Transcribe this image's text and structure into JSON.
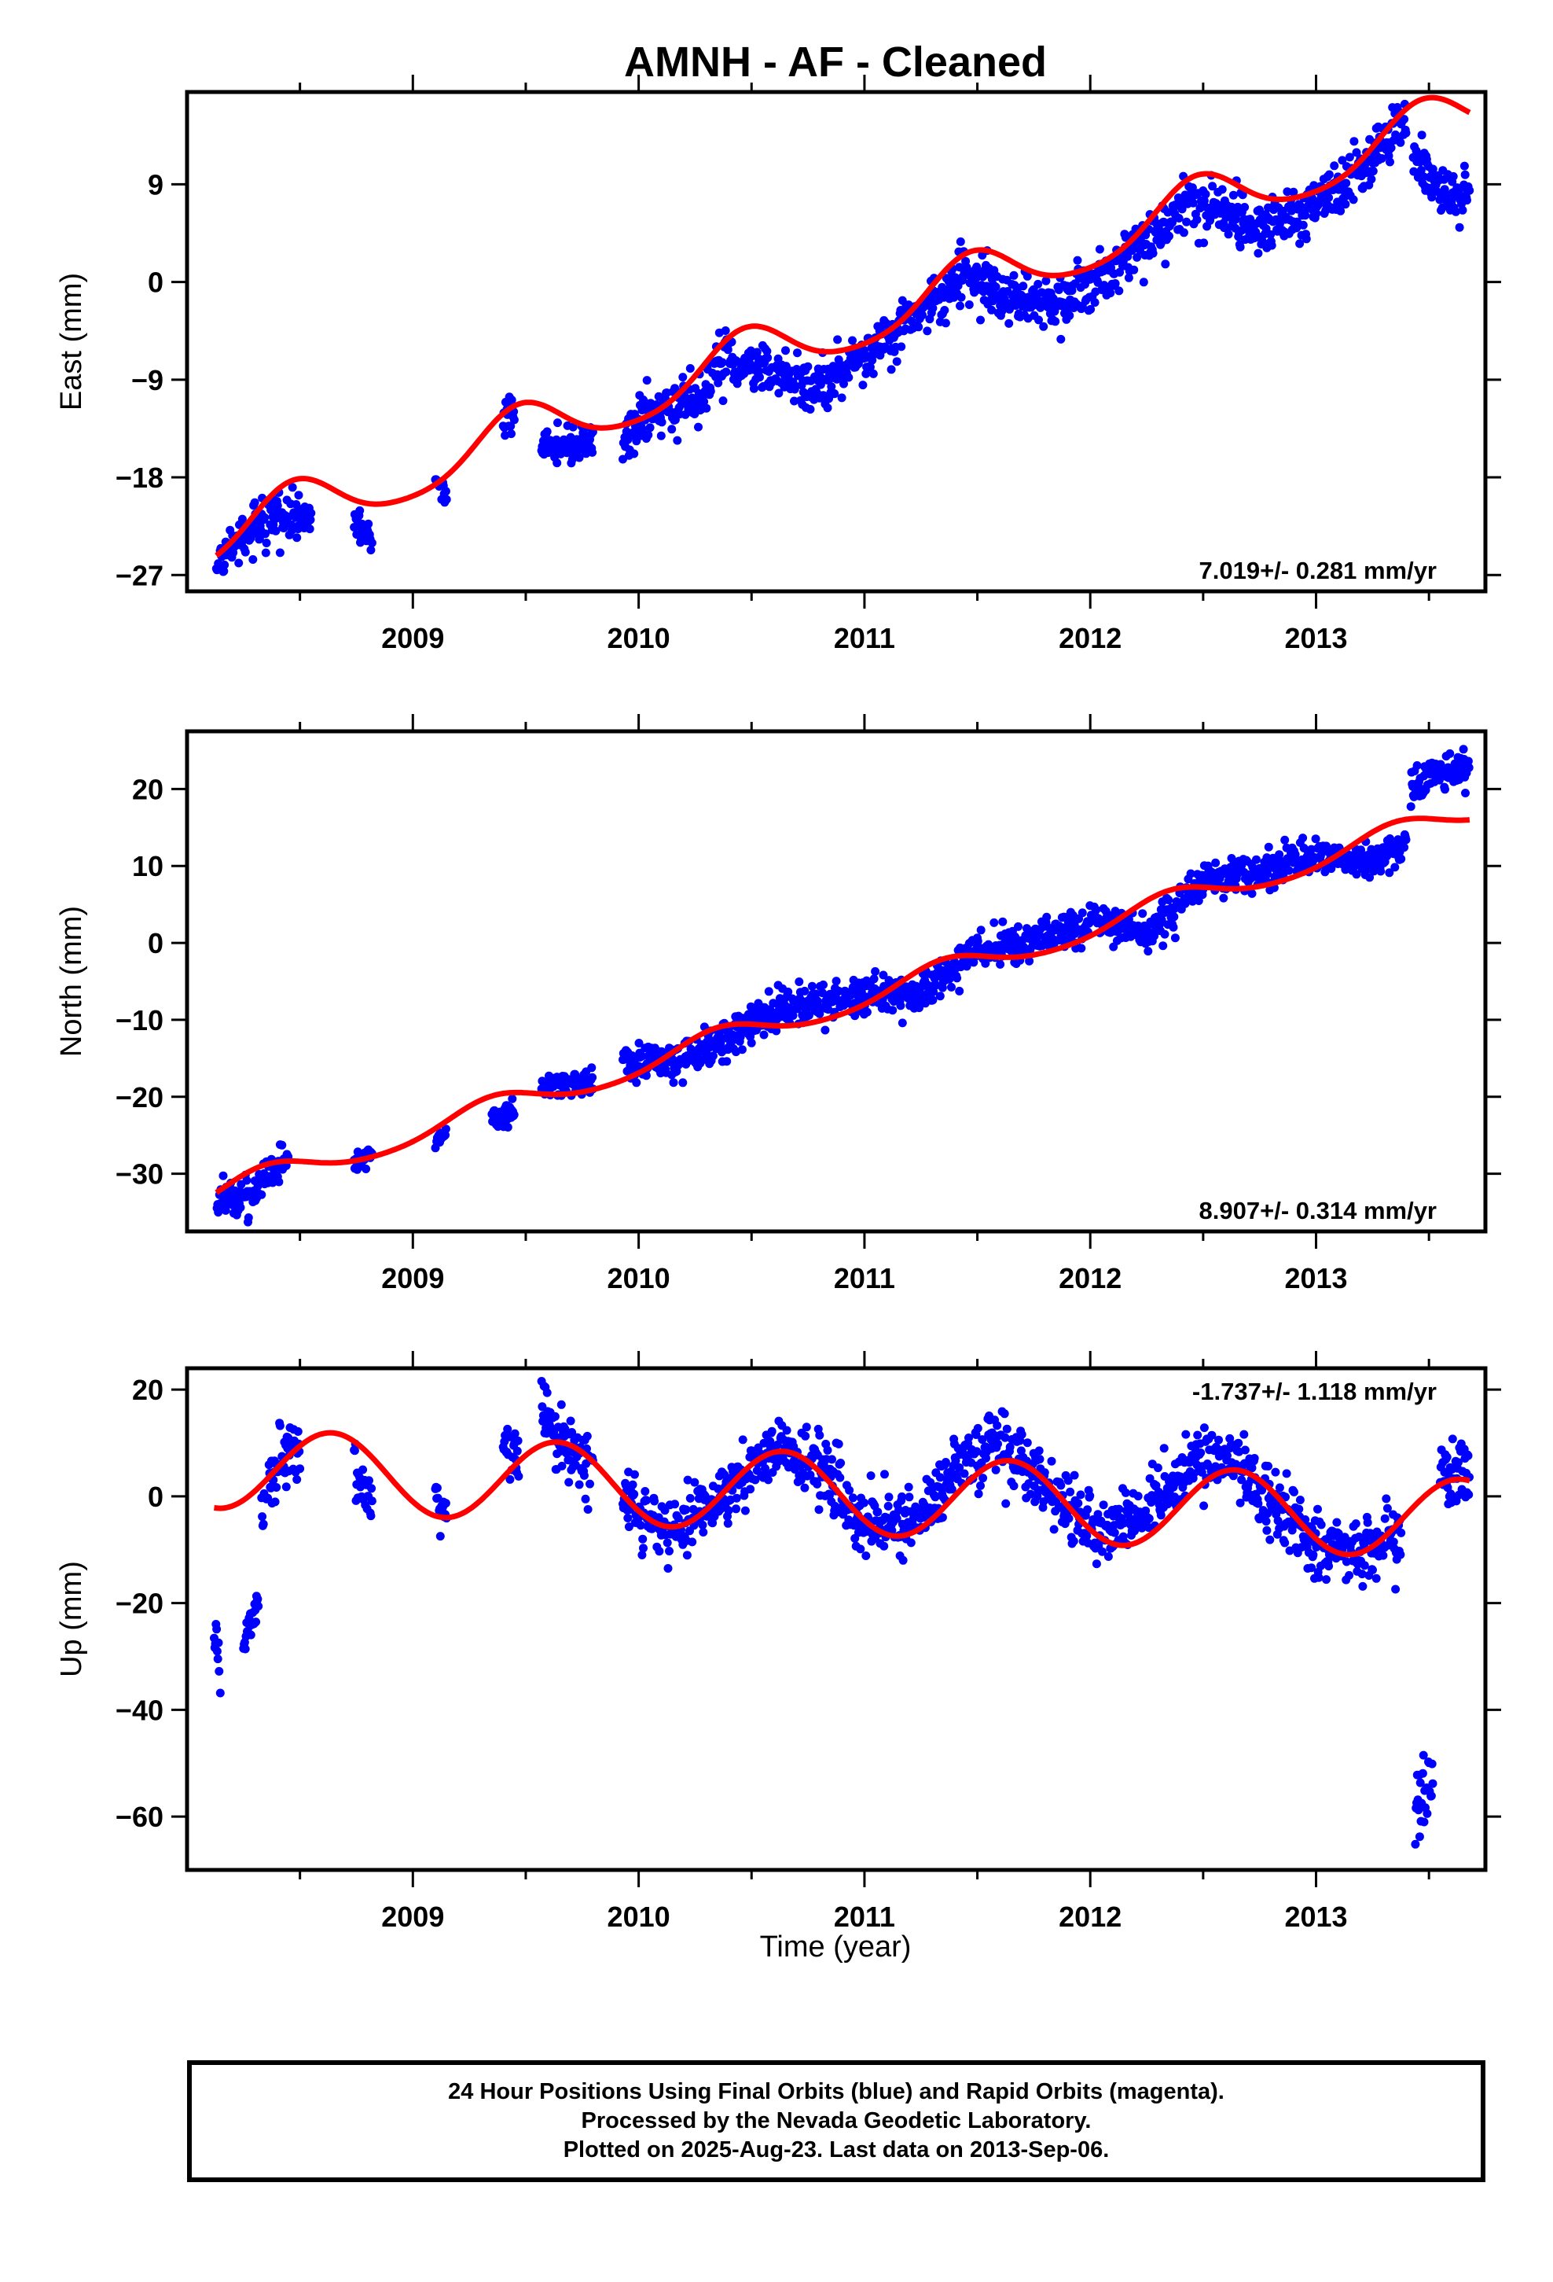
{
  "chart_data": {
    "title": "AMNH  - AF - Cleaned",
    "xlabel": "Time (year)",
    "xlim": [
      2008.0,
      2013.75
    ],
    "xticks": [
      2009,
      2010,
      2011,
      2012,
      2013
    ],
    "minor_xtick_step": 0.5,
    "colors": {
      "points": "#0000ff",
      "fit": "#ff0000"
    },
    "panels": [
      {
        "type": "scatter",
        "component": "East",
        "ylabel": "East (mm)",
        "ylim": [
          -28.5,
          17.5
        ],
        "yticks": [
          -27,
          -18,
          -9,
          0,
          9
        ],
        "rate_text": "7.019+/- 0.281 mm/yr",
        "rate_pos": "bottom-right",
        "fit": {
          "rate": 7.019,
          "ref_year": 2011,
          "offset": -3.5,
          "annual_amp": 2.6,
          "annual_peak": 2008.47,
          "semiannual_amp": 0.4
        },
        "data_segments": [
          {
            "x": [
              2008.13,
              2008.22,
              2008.32,
              2008.43,
              2008.55
            ],
            "y": [
              -26.4,
              -24.0,
              -22.2,
              -21.3,
              -22.0
            ],
            "noise": 1.0
          },
          {
            "x": [
              2008.74,
              2008.82
            ],
            "y": [
              -21.8,
              -23.9
            ],
            "noise": 0.8
          },
          {
            "x": [
              2009.1,
              2009.15
            ],
            "y": [
              -18.2,
              -19.6
            ],
            "noise": 0.5
          },
          {
            "x": [
              2009.4,
              2009.45
            ],
            "y": [
              -12.6,
              -12.2
            ],
            "noise": 0.8
          },
          {
            "x": [
              2009.57,
              2009.8
            ],
            "y": [
              -15.3,
              -14.8
            ],
            "noise": 0.9
          },
          {
            "x": [
              2009.93,
              2010.0,
              2010.25,
              2010.4,
              2010.6,
              2010.8,
              2011.0,
              2011.2,
              2011.45,
              2011.65,
              2011.8,
              2012.0,
              2012.2,
              2012.45,
              2012.65,
              2012.75,
              2012.95,
              2013.2,
              2013.4
            ],
            "y": [
              -15.0,
              -13.0,
              -10.5,
              -7.0,
              -8.5,
              -9.6,
              -7.0,
              -3.5,
              0.8,
              -1.5,
              -2.2,
              -0.3,
              3.0,
              7.6,
              6.0,
              4.8,
              6.5,
              10.5,
              15.0
            ],
            "noise": 1.2
          },
          {
            "x": [
              2013.43,
              2013.55,
              2013.68
            ],
            "y": [
              11.0,
              9.0,
              7.0
            ],
            "noise": 1.3
          }
        ]
      },
      {
        "type": "scatter",
        "component": "North",
        "ylabel": "North (mm)",
        "ylim": [
          -37.5,
          27.5
        ],
        "yticks": [
          -30,
          -20,
          -10,
          0,
          10,
          20
        ],
        "rate_text": "8.907+/- 0.314 mm/yr",
        "rate_pos": "bottom-right",
        "fit": {
          "rate": 8.907,
          "ref_year": 2011,
          "offset": -7.0,
          "annual_amp": 1.6,
          "annual_peak": 2008.35,
          "semiannual_amp": 0.2
        },
        "data_segments": [
          {
            "x": [
              2008.13,
              2008.3,
              2008.45
            ],
            "y": [
              -33.5,
              -32.5,
              -27.5
            ],
            "noise": 1.2
          },
          {
            "x": [
              2008.74,
              2008.82
            ],
            "y": [
              -28.5,
              -27.5
            ],
            "noise": 0.8
          },
          {
            "x": [
              2009.1,
              2009.15
            ],
            "y": [
              -25.5,
              -25.0
            ],
            "noise": 0.5
          },
          {
            "x": [
              2009.35,
              2009.45
            ],
            "y": [
              -23.0,
              -21.5
            ],
            "noise": 0.8
          },
          {
            "x": [
              2009.57,
              2009.8
            ],
            "y": [
              -18.5,
              -18.0
            ],
            "noise": 0.9
          },
          {
            "x": [
              2009.93,
              2010.2,
              2010.4,
              2010.6,
              2010.9,
              2011.25,
              2011.5,
              2011.8,
              2012.05,
              2012.25,
              2012.5,
              2012.75,
              2013.0,
              2013.25,
              2013.4
            ],
            "y": [
              -15.5,
              -15.5,
              -12.0,
              -9.0,
              -7.0,
              -6.5,
              -1.0,
              0.5,
              3.0,
              1.0,
              8.5,
              9.0,
              11.5,
              10.5,
              13.0
            ],
            "noise": 1.2
          },
          {
            "x": [
              2013.42,
              2013.55,
              2013.68
            ],
            "y": [
              20.5,
              22.5,
              22.5
            ],
            "noise": 1.4
          }
        ]
      },
      {
        "type": "scatter",
        "component": "Up",
        "ylabel": "Up (mm)",
        "ylim": [
          -70,
          24
        ],
        "yticks": [
          -60,
          -40,
          -20,
          0,
          20
        ],
        "rate_text": "-1.737+/- 1.118 mm/yr",
        "rate_pos": "top-right",
        "fit": {
          "rate": -1.737,
          "ref_year": 2011,
          "offset": 0.3,
          "annual_amp": 7.5,
          "annual_peak": 2008.64,
          "semiannual_amp": 0.0
        },
        "data_segments": [
          {
            "x": [
              2008.12,
              2008.15
            ],
            "y": [
              -25.0,
              -34.0
            ],
            "noise": 2.5
          },
          {
            "x": [
              2008.25,
              2008.32
            ],
            "y": [
              -26.0,
              -20.0
            ],
            "noise": 2.0
          },
          {
            "x": [
              2008.33,
              2008.42,
              2008.5
            ],
            "y": [
              0.0,
              6.0,
              9.0
            ],
            "noise": 3.5
          },
          {
            "x": [
              2008.74,
              2008.82
            ],
            "y": [
              5.0,
              -2.0
            ],
            "noise": 3.0
          },
          {
            "x": [
              2009.1,
              2009.15
            ],
            "y": [
              0.0,
              -4.0
            ],
            "noise": 2.0
          },
          {
            "x": [
              2009.4,
              2009.47
            ],
            "y": [
              11.0,
              8.0
            ],
            "noise": 3.0
          },
          {
            "x": [
              2009.57,
              2009.63,
              2009.8
            ],
            "y": [
              17.0,
              11.0,
              6.0
            ],
            "noise": 3.0
          },
          {
            "x": [
              2009.93,
              2010.1,
              2010.3,
              2010.6,
              2010.8,
              2011.0,
              2011.25,
              2011.45,
              2011.6,
              2011.8,
              2012.0,
              2012.2,
              2012.45,
              2012.6,
              2012.8,
              2013.0,
              2013.2,
              2013.38
            ],
            "y": [
              0.0,
              -7.0,
              -2.0,
              9.0,
              6.0,
              -6.0,
              -5.0,
              8.0,
              10.0,
              2.0,
              -6.0,
              -4.0,
              6.0,
              8.0,
              -1.0,
              -9.0,
              -10.0,
              -6.0
            ],
            "noise": 3.0
          },
          {
            "x": [
              2013.44,
              2013.52
            ],
            "y": [
              -60.0,
              -53.0
            ],
            "noise": 3.5
          },
          {
            "x": [
              2013.55,
              2013.68
            ],
            "y": [
              5.0,
              3.0
            ],
            "noise": 3.0
          }
        ]
      }
    ]
  },
  "footer": {
    "line1": "24 Hour Positions Using Final Orbits (blue) and Rapid Orbits (magenta).",
    "line2": "Processed by the Nevada Geodetic Laboratory.",
    "line3": "Plotted on 2025-Aug-23. Last data on 2013-Sep-06."
  }
}
